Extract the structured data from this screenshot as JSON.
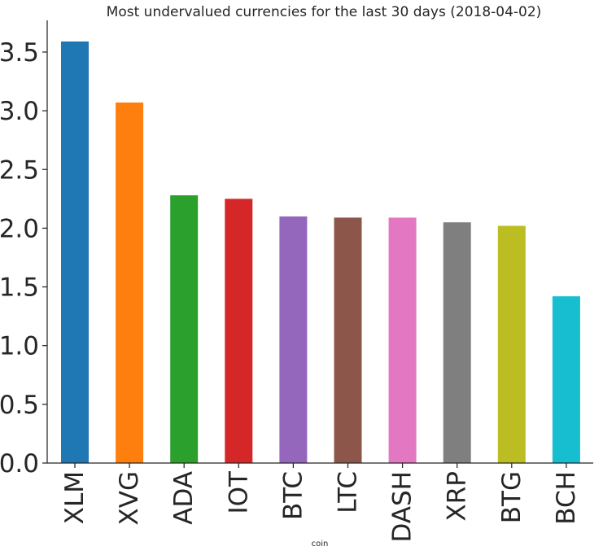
{
  "chart_data": {
    "type": "bar",
    "title": "Most undervalued currencies for the last 30 days (2018-04-02)",
    "xlabel": "coin",
    "ylabel": "",
    "categories": [
      "XLM",
      "XVG",
      "ADA",
      "IOT",
      "BTC",
      "LTC",
      "DASH",
      "XRP",
      "BTG",
      "BCH"
    ],
    "values": [
      3.59,
      3.07,
      2.28,
      2.25,
      2.1,
      2.09,
      2.09,
      2.05,
      2.02,
      1.42
    ],
    "colors": [
      "#1f77b4",
      "#ff7f0e",
      "#2ca02c",
      "#d62728",
      "#9467bd",
      "#8c564b",
      "#e377c2",
      "#7f7f7f",
      "#bcbd22",
      "#17becf"
    ],
    "yticks": [
      0.0,
      0.5,
      1.0,
      1.5,
      2.0,
      2.5,
      3.0,
      3.5
    ],
    "ytick_labels": [
      "0.0",
      "0.5",
      "1.0",
      "1.5",
      "2.0",
      "2.5",
      "3.0",
      "3.5"
    ],
    "ylim": [
      0,
      3.77
    ],
    "grid": false,
    "legend": "none"
  }
}
